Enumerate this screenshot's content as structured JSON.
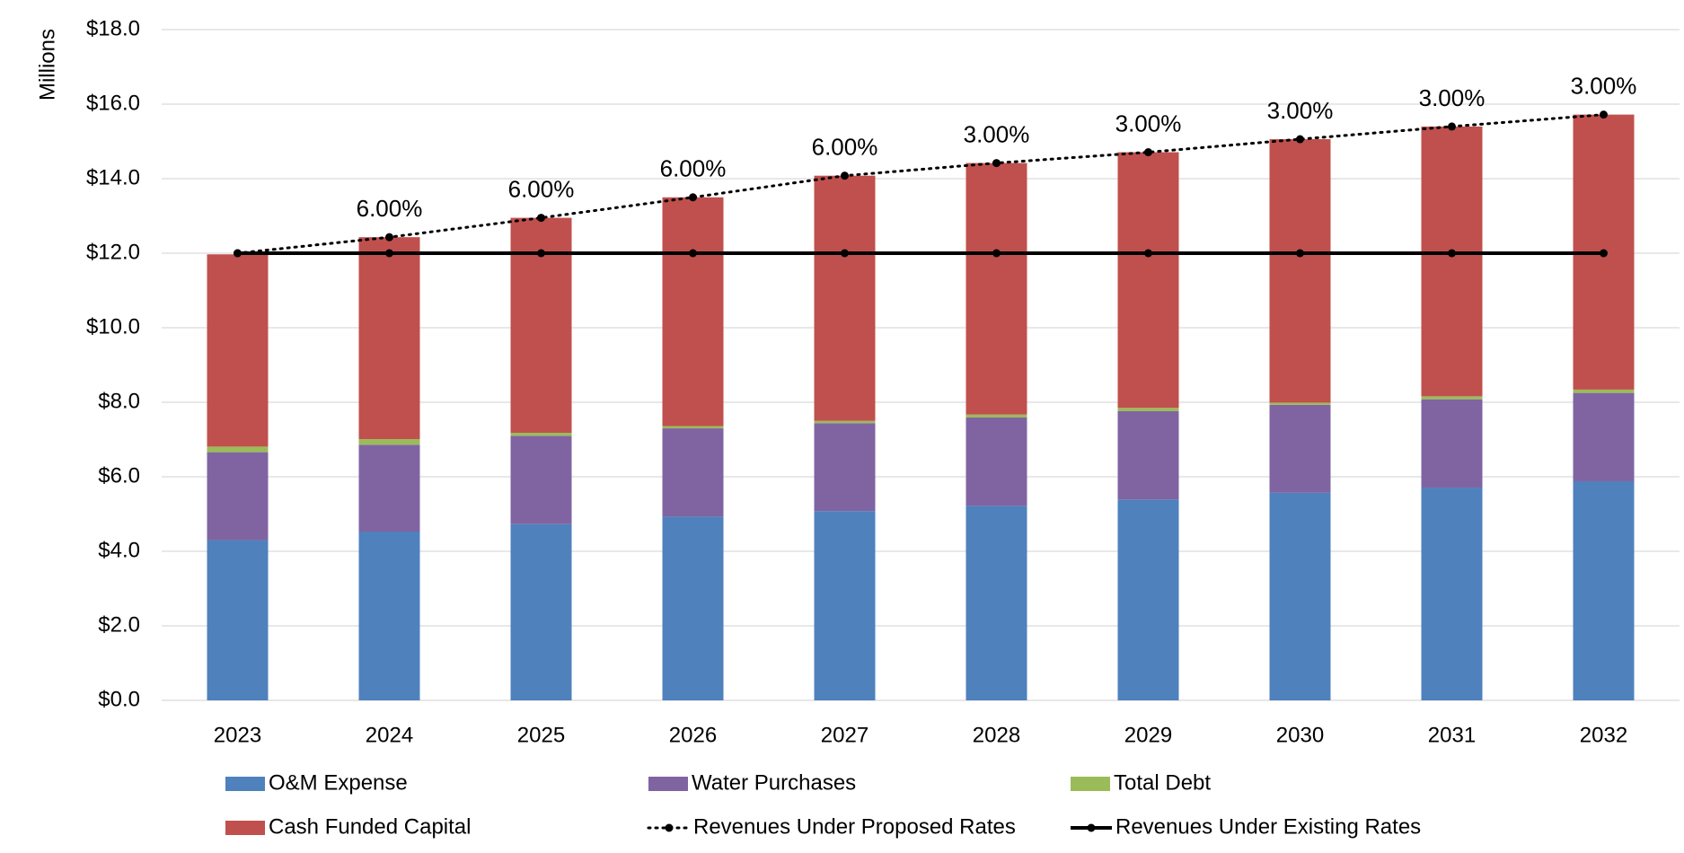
{
  "chart_data": {
    "type": "bar",
    "stacked": true,
    "y_axis_label": "Millions",
    "categories": [
      "2023",
      "2024",
      "2025",
      "2026",
      "2027",
      "2028",
      "2029",
      "2030",
      "2031",
      "2032"
    ],
    "series": [
      {
        "name": "O&M Expense",
        "kind": "bar",
        "color": "#4f81bd",
        "values": [
          4.3,
          4.53,
          4.73,
          4.93,
          5.08,
          5.22,
          5.39,
          5.57,
          5.71,
          5.88
        ]
      },
      {
        "name": "Water Purchases",
        "kind": "bar",
        "color": "#8064a2",
        "values": [
          2.36,
          2.33,
          2.37,
          2.37,
          2.36,
          2.37,
          2.37,
          2.36,
          2.37,
          2.37
        ]
      },
      {
        "name": "Total Debt",
        "kind": "bar",
        "color": "#9bbb59",
        "values": [
          0.15,
          0.15,
          0.08,
          0.06,
          0.06,
          0.08,
          0.09,
          0.06,
          0.08,
          0.09
        ]
      },
      {
        "name": "Cash Funded Capital",
        "kind": "bar",
        "color": "#c0504d",
        "values": [
          5.16,
          5.42,
          5.77,
          6.14,
          6.58,
          6.75,
          6.86,
          7.07,
          7.24,
          7.38
        ]
      },
      {
        "name": "Revenues Under Proposed Rates",
        "kind": "line",
        "line_style": "dotted",
        "color": "#000000",
        "values": [
          12.0,
          12.43,
          12.95,
          13.5,
          14.08,
          14.42,
          14.71,
          15.06,
          15.4,
          15.72
        ]
      },
      {
        "name": "Revenues Under Existing Rates",
        "kind": "line",
        "line_style": "solid",
        "color": "#000000",
        "values": [
          12.0,
          12.0,
          12.0,
          12.0,
          12.0,
          12.0,
          12.0,
          12.0,
          12.0,
          12.0
        ]
      }
    ],
    "rate_labels": [
      null,
      "6.00%",
      "6.00%",
      "6.00%",
      "6.00%",
      "3.00%",
      "3.00%",
      "3.00%",
      "3.00%",
      "3.00%"
    ],
    "ylim": [
      0,
      18
    ],
    "yticks": [
      {
        "value": 0,
        "label": "$0.0"
      },
      {
        "value": 2,
        "label": "$2.0"
      },
      {
        "value": 4,
        "label": "$4.0"
      },
      {
        "value": 6,
        "label": "$6.0"
      },
      {
        "value": 8,
        "label": "$8.0"
      },
      {
        "value": 10,
        "label": "$10.0"
      },
      {
        "value": 12,
        "label": "$12.0"
      },
      {
        "value": 14,
        "label": "$14.0"
      },
      {
        "value": 16,
        "label": "$16.0"
      },
      {
        "value": 18,
        "label": "$18.0"
      }
    ],
    "grid": true,
    "legend": "bottom"
  }
}
